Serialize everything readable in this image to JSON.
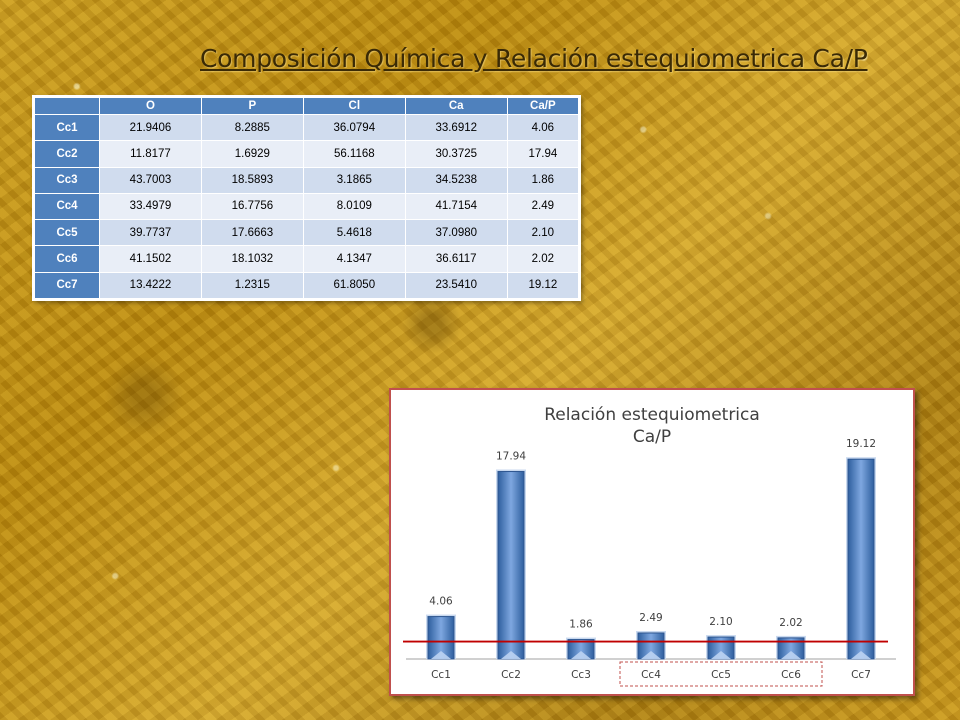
{
  "title": "Composición Química y Relación estequiometrica Ca/P",
  "table": {
    "headers": [
      "",
      "O",
      "P",
      "Cl",
      "Ca",
      "Ca/P"
    ],
    "rows": [
      {
        "label": "Cc1",
        "cells": [
          "21.9406",
          "8.2885",
          "36.0794",
          "33.6912",
          "4.06"
        ]
      },
      {
        "label": "Cc2",
        "cells": [
          "11.8177",
          "1.6929",
          "56.1168",
          "30.3725",
          "17.94"
        ]
      },
      {
        "label": "Cc3",
        "cells": [
          "43.7003",
          "18.5893",
          "3.1865",
          "34.5238",
          "1.86"
        ]
      },
      {
        "label": "Cc4",
        "cells": [
          "33.4979",
          "16.7756",
          "8.0109",
          "41.7154",
          "2.49"
        ]
      },
      {
        "label": "Cc5",
        "cells": [
          "39.7737",
          "17.6663",
          "5.4618",
          "37.0980",
          "2.10"
        ]
      },
      {
        "label": "Cc6",
        "cells": [
          "41.1502",
          "18.1032",
          "4.1347",
          "36.6117",
          "2.02"
        ]
      },
      {
        "label": "Cc7",
        "cells": [
          "13.4222",
          "1.2315",
          "61.8050",
          "23.5410",
          "19.12"
        ]
      }
    ]
  },
  "chart_data": {
    "type": "bar",
    "title": [
      "Relación estequiometrica",
      "Ca/P"
    ],
    "categories": [
      "Cc1",
      "Cc2",
      "Cc3",
      "Cc4",
      "Cc5",
      "Cc6",
      "Cc7"
    ],
    "values": [
      4.06,
      17.94,
      1.86,
      2.49,
      2.1,
      2.02,
      19.12
    ],
    "data_labels": [
      "4.06",
      "17.94",
      "1.86",
      "2.49",
      "2.10",
      "2.02",
      "19.12"
    ],
    "reference_line": 1.67,
    "ylim": [
      0,
      20
    ],
    "highlighted_categories": [
      "Cc4",
      "Cc5",
      "Cc6"
    ],
    "colors": {
      "bar": "#4f81bd",
      "reference_line": "#c00000",
      "highlight_box": "#c0504d"
    }
  }
}
